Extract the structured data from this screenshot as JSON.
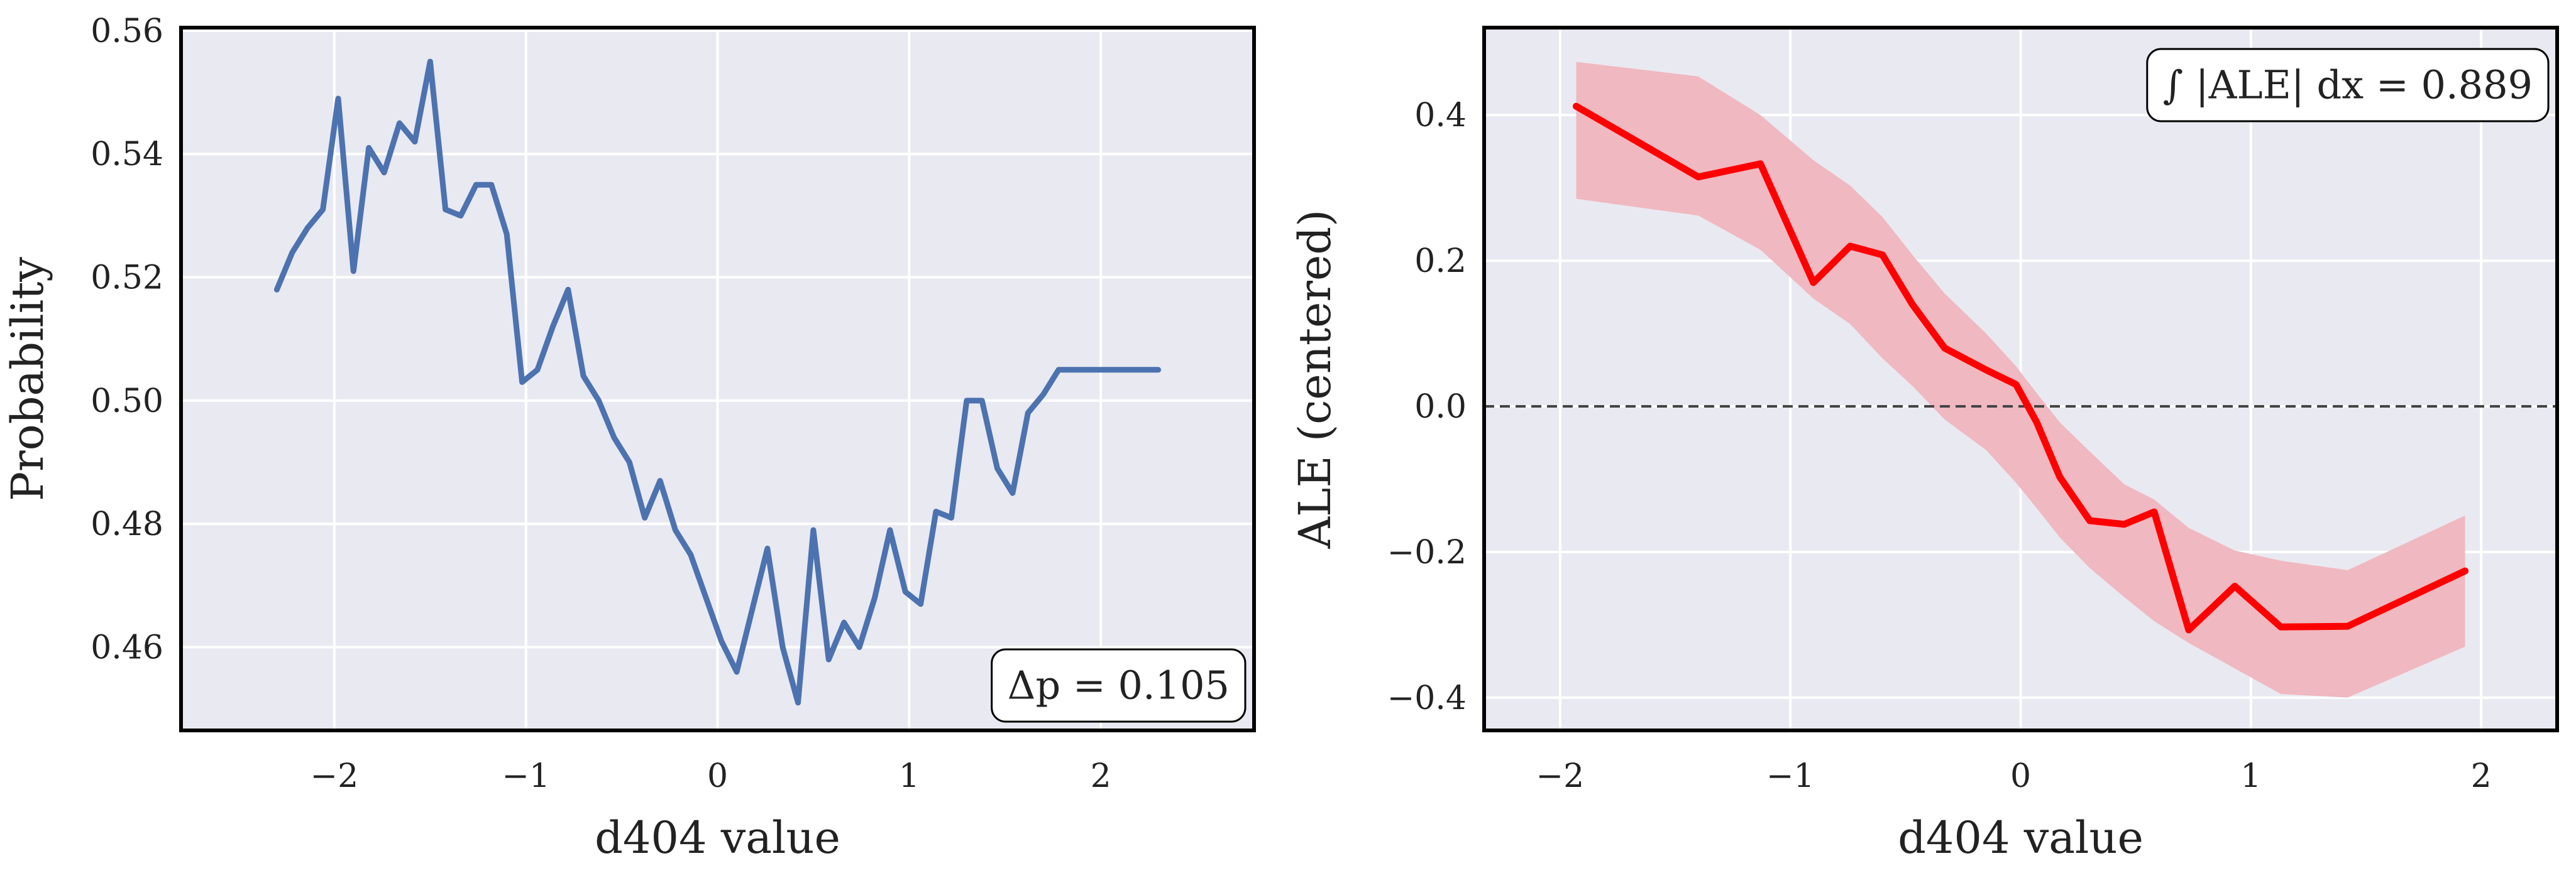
{
  "colors": {
    "background": "#e9e9f1",
    "grid": "#ffffff",
    "frame": "#000000",
    "prob_line": "#4c72b0",
    "ale_line": "#ff0000",
    "ale_band": "#f0b8c0",
    "zero_line": "#444444"
  },
  "chart_data": [
    {
      "type": "line",
      "xlabel": "d404 value",
      "ylabel": "Probability",
      "xlim": [
        -2.8,
        2.8
      ],
      "ylim": [
        0.4465,
        0.5605
      ],
      "xticks": [
        -2,
        -1,
        0,
        1,
        2
      ],
      "xtick_labels": [
        "−2",
        "−1",
        "0",
        "1",
        "2"
      ],
      "yticks": [
        0.46,
        0.48,
        0.5,
        0.52,
        0.54,
        0.56
      ],
      "ytick_labels": [
        "0.46",
        "0.48",
        "0.50",
        "0.52",
        "0.54",
        "0.56"
      ],
      "grid": true,
      "annotation": "Δp = 0.105",
      "annotation_position": "bottom-right",
      "series": [
        {
          "color": "#4c72b0",
          "x": [
            -2.3,
            -2.22,
            -2.14,
            -2.06,
            -1.98,
            -1.9,
            -1.82,
            -1.74,
            -1.66,
            -1.58,
            -1.5,
            -1.42,
            -1.34,
            -1.26,
            -1.18,
            -1.1,
            -1.02,
            -0.94,
            -0.86,
            -0.78,
            -0.7,
            -0.62,
            -0.54,
            -0.46,
            -0.38,
            -0.3,
            -0.22,
            -0.14,
            -0.06,
            0.02,
            0.1,
            0.18,
            0.26,
            0.34,
            0.42,
            0.5,
            0.58,
            0.66,
            0.74,
            0.82,
            0.9,
            0.98,
            1.06,
            1.14,
            1.22,
            1.3,
            1.38,
            1.46,
            1.54,
            1.62,
            1.7,
            1.78,
            1.86,
            1.94,
            2.02,
            2.1,
            2.18,
            2.26,
            2.3
          ],
          "y": [
            0.518,
            0.524,
            0.528,
            0.531,
            0.549,
            0.521,
            0.541,
            0.537,
            0.545,
            0.542,
            0.555,
            0.531,
            0.53,
            0.535,
            0.535,
            0.527,
            0.503,
            0.505,
            0.512,
            0.518,
            0.504,
            0.5,
            0.494,
            0.49,
            0.481,
            0.487,
            0.479,
            0.475,
            0.468,
            0.461,
            0.456,
            0.466,
            0.476,
            0.46,
            0.451,
            0.479,
            0.458,
            0.464,
            0.46,
            0.468,
            0.479,
            0.469,
            0.467,
            0.482,
            0.481,
            0.5,
            0.5,
            0.489,
            0.485,
            0.498,
            0.501,
            0.505,
            0.505,
            0.505,
            0.505,
            0.505,
            0.505,
            0.505,
            0.505
          ]
        }
      ]
    },
    {
      "type": "line",
      "xlabel": "d404 value",
      "ylabel": "ALE (centered)",
      "xlim": [
        -2.33,
        2.33
      ],
      "ylim": [
        -0.445,
        0.52
      ],
      "xticks": [
        -2,
        -1,
        0,
        1,
        2
      ],
      "xtick_labels": [
        "−2",
        "−1",
        "0",
        "1",
        "2"
      ],
      "yticks": [
        -0.4,
        -0.2,
        0.0,
        0.2,
        0.4
      ],
      "ytick_labels": [
        "−0.4",
        "−0.2",
        "0.0",
        "0.2",
        "0.4"
      ],
      "grid": true,
      "reference_line_y": 0.0,
      "annotation": "∫ |ALE| dx = 0.889",
      "annotation_position": "top-right",
      "series": [
        {
          "color": "#ff0000",
          "x": [
            -1.93,
            -1.4,
            -1.13,
            -0.9,
            -0.74,
            -0.6,
            -0.47,
            -0.33,
            -0.15,
            -0.02,
            0.07,
            0.17,
            0.3,
            0.45,
            0.58,
            0.73,
            0.93,
            1.13,
            1.42,
            1.93
          ],
          "y": [
            0.412,
            0.315,
            0.333,
            0.17,
            0.22,
            0.208,
            0.14,
            0.08,
            0.05,
            0.03,
            -0.022,
            -0.097,
            -0.157,
            -0.162,
            -0.145,
            -0.307,
            -0.247,
            -0.303,
            -0.302,
            -0.226
          ],
          "lower": [
            0.285,
            0.262,
            0.215,
            0.148,
            0.113,
            0.066,
            0.028,
            -0.018,
            -0.06,
            -0.105,
            -0.14,
            -0.18,
            -0.222,
            -0.262,
            -0.295,
            -0.325,
            -0.36,
            -0.395,
            -0.4,
            -0.33
          ],
          "upper": [
            0.473,
            0.453,
            0.4,
            0.338,
            0.303,
            0.26,
            0.208,
            0.155,
            0.1,
            0.055,
            0.018,
            -0.022,
            -0.062,
            -0.107,
            -0.128,
            -0.167,
            -0.198,
            -0.212,
            -0.225,
            -0.15
          ]
        }
      ]
    }
  ]
}
